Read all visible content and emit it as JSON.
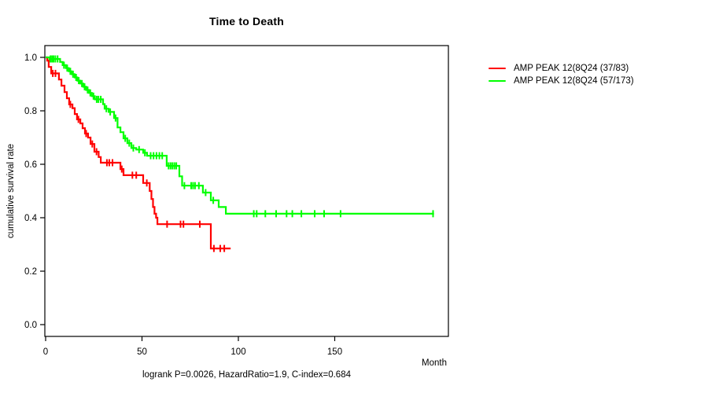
{
  "title": "Time to Death",
  "axes": {
    "y_label": "cumulative survival rate",
    "x_label": "Month",
    "y_ticks": [
      "0.0",
      "0.2",
      "0.4",
      "0.6",
      "0.8",
      "1.0"
    ],
    "x_ticks": [
      "0",
      "50",
      "100",
      "150"
    ]
  },
  "annotation": "logrank P=0.0026, HazardRatio=1.9, C-index=0.684",
  "legend": [
    {
      "label": "AMP PEAK 12(8Q24 (37/83)",
      "color": "#ff0000"
    },
    {
      "label": "AMP PEAK 12(8Q24 (57/173)",
      "color": "#00ff00"
    }
  ],
  "chart_data": {
    "type": "line",
    "subtype": "kaplan-meier-step",
    "title": "Time to Death",
    "xlabel": "Month",
    "ylabel": "cumulative survival rate",
    "xlim": [
      0,
      209
    ],
    "ylim": [
      0.0,
      1.0
    ],
    "x_tick_values": [
      0,
      50,
      100,
      150
    ],
    "y_tick_values": [
      0.0,
      0.2,
      0.4,
      0.6,
      0.8,
      1.0
    ],
    "grid": false,
    "legend_position": "right-outside",
    "annotation": "logrank P=0.0026, HazardRatio=1.9, C-index=0.684",
    "series": [
      {
        "name": "AMP PEAK 12(8Q24 (37/83)",
        "color": "#ff0000",
        "events_total": "37/83",
        "end_x": 96,
        "steps": [
          [
            0,
            1.0
          ],
          [
            0.8,
            0.988
          ],
          [
            1.6,
            0.964
          ],
          [
            2.9,
            0.94
          ],
          [
            6.9,
            0.917
          ],
          [
            8.2,
            0.894
          ],
          [
            9.8,
            0.87
          ],
          [
            11,
            0.847
          ],
          [
            12.2,
            0.824
          ],
          [
            13.9,
            0.81
          ],
          [
            15.1,
            0.788
          ],
          [
            16.3,
            0.768
          ],
          [
            18,
            0.753
          ],
          [
            19.2,
            0.735
          ],
          [
            20.4,
            0.715
          ],
          [
            22,
            0.7
          ],
          [
            23.3,
            0.676
          ],
          [
            25.3,
            0.647
          ],
          [
            27.5,
            0.627
          ],
          [
            28.6,
            0.606
          ],
          [
            38.8,
            0.582
          ],
          [
            40.4,
            0.559
          ],
          [
            50.6,
            0.53
          ],
          [
            54,
            0.5
          ],
          [
            54.9,
            0.47
          ],
          [
            55.7,
            0.44
          ],
          [
            56.5,
            0.415
          ],
          [
            57.3,
            0.4
          ],
          [
            58,
            0.376
          ],
          [
            85.7,
            0.285
          ]
        ],
        "censor_marks": [
          [
            3.7,
            0.94
          ],
          [
            5.1,
            0.94
          ],
          [
            12.8,
            0.824
          ],
          [
            17,
            0.768
          ],
          [
            21,
            0.715
          ],
          [
            24.2,
            0.676
          ],
          [
            26.4,
            0.647
          ],
          [
            31.8,
            0.606
          ],
          [
            33,
            0.606
          ],
          [
            34.7,
            0.606
          ],
          [
            39.5,
            0.582
          ],
          [
            45,
            0.559
          ],
          [
            47,
            0.559
          ],
          [
            52.5,
            0.53
          ],
          [
            63,
            0.376
          ],
          [
            70,
            0.376
          ],
          [
            71.5,
            0.376
          ],
          [
            80,
            0.376
          ],
          [
            87.3,
            0.285
          ],
          [
            90.6,
            0.285
          ],
          [
            92.7,
            0.285
          ]
        ]
      },
      {
        "name": "AMP PEAK 12(8Q24 (57/173)",
        "color": "#00ff00",
        "events_total": "57/173",
        "end_x": 201.5,
        "steps": [
          [
            0,
            1.0
          ],
          [
            1.9,
            0.994
          ],
          [
            7.5,
            0.983
          ],
          [
            8.8,
            0.971
          ],
          [
            10.5,
            0.96
          ],
          [
            12,
            0.948
          ],
          [
            13.5,
            0.937
          ],
          [
            15,
            0.925
          ],
          [
            16.5,
            0.913
          ],
          [
            18,
            0.902
          ],
          [
            19.5,
            0.89
          ],
          [
            21,
            0.878
          ],
          [
            22.5,
            0.867
          ],
          [
            24,
            0.855
          ],
          [
            25.5,
            0.843
          ],
          [
            29.8,
            0.825
          ],
          [
            30.6,
            0.808
          ],
          [
            32.7,
            0.796
          ],
          [
            35.5,
            0.773
          ],
          [
            37.3,
            0.738
          ],
          [
            38.8,
            0.72
          ],
          [
            40.4,
            0.697
          ],
          [
            42.4,
            0.679
          ],
          [
            44.5,
            0.661
          ],
          [
            47,
            0.655
          ],
          [
            50.6,
            0.643
          ],
          [
            52.6,
            0.632
          ],
          [
            62.8,
            0.594
          ],
          [
            69.4,
            0.555
          ],
          [
            70.8,
            0.52
          ],
          [
            81.6,
            0.494
          ],
          [
            85.7,
            0.465
          ],
          [
            89.8,
            0.44
          ],
          [
            93.5,
            0.415
          ]
        ],
        "censor_marks": [
          [
            2.5,
            0.994
          ],
          [
            3.3,
            0.994
          ],
          [
            4.1,
            0.994
          ],
          [
            5,
            0.994
          ],
          [
            6.2,
            0.994
          ],
          [
            9.5,
            0.971
          ],
          [
            11.2,
            0.96
          ],
          [
            12.8,
            0.948
          ],
          [
            14.2,
            0.937
          ],
          [
            15.8,
            0.925
          ],
          [
            17.2,
            0.913
          ],
          [
            18.8,
            0.902
          ],
          [
            20.2,
            0.89
          ],
          [
            21.8,
            0.878
          ],
          [
            23.2,
            0.867
          ],
          [
            24.8,
            0.855
          ],
          [
            26.5,
            0.843
          ],
          [
            27.4,
            0.843
          ],
          [
            28.6,
            0.843
          ],
          [
            31.5,
            0.808
          ],
          [
            33.5,
            0.796
          ],
          [
            36.3,
            0.773
          ],
          [
            41.3,
            0.697
          ],
          [
            43.4,
            0.679
          ],
          [
            45.5,
            0.661
          ],
          [
            48.5,
            0.655
          ],
          [
            51.5,
            0.643
          ],
          [
            54.5,
            0.632
          ],
          [
            56,
            0.632
          ],
          [
            57.5,
            0.632
          ],
          [
            59,
            0.632
          ],
          [
            60.5,
            0.632
          ],
          [
            63.8,
            0.594
          ],
          [
            64.8,
            0.594
          ],
          [
            65.8,
            0.594
          ],
          [
            66.8,
            0.594
          ],
          [
            67.8,
            0.594
          ],
          [
            72,
            0.52
          ],
          [
            75.5,
            0.52
          ],
          [
            76.5,
            0.52
          ],
          [
            77.5,
            0.52
          ],
          [
            79.5,
            0.52
          ],
          [
            83,
            0.494
          ],
          [
            87,
            0.465
          ],
          [
            108,
            0.415
          ],
          [
            109.5,
            0.415
          ],
          [
            114,
            0.415
          ],
          [
            119.6,
            0.415
          ],
          [
            125,
            0.415
          ],
          [
            128,
            0.415
          ],
          [
            132.7,
            0.415
          ],
          [
            139.6,
            0.415
          ],
          [
            144.5,
            0.415
          ],
          [
            153,
            0.415
          ],
          [
            201,
            0.415
          ]
        ]
      }
    ]
  }
}
